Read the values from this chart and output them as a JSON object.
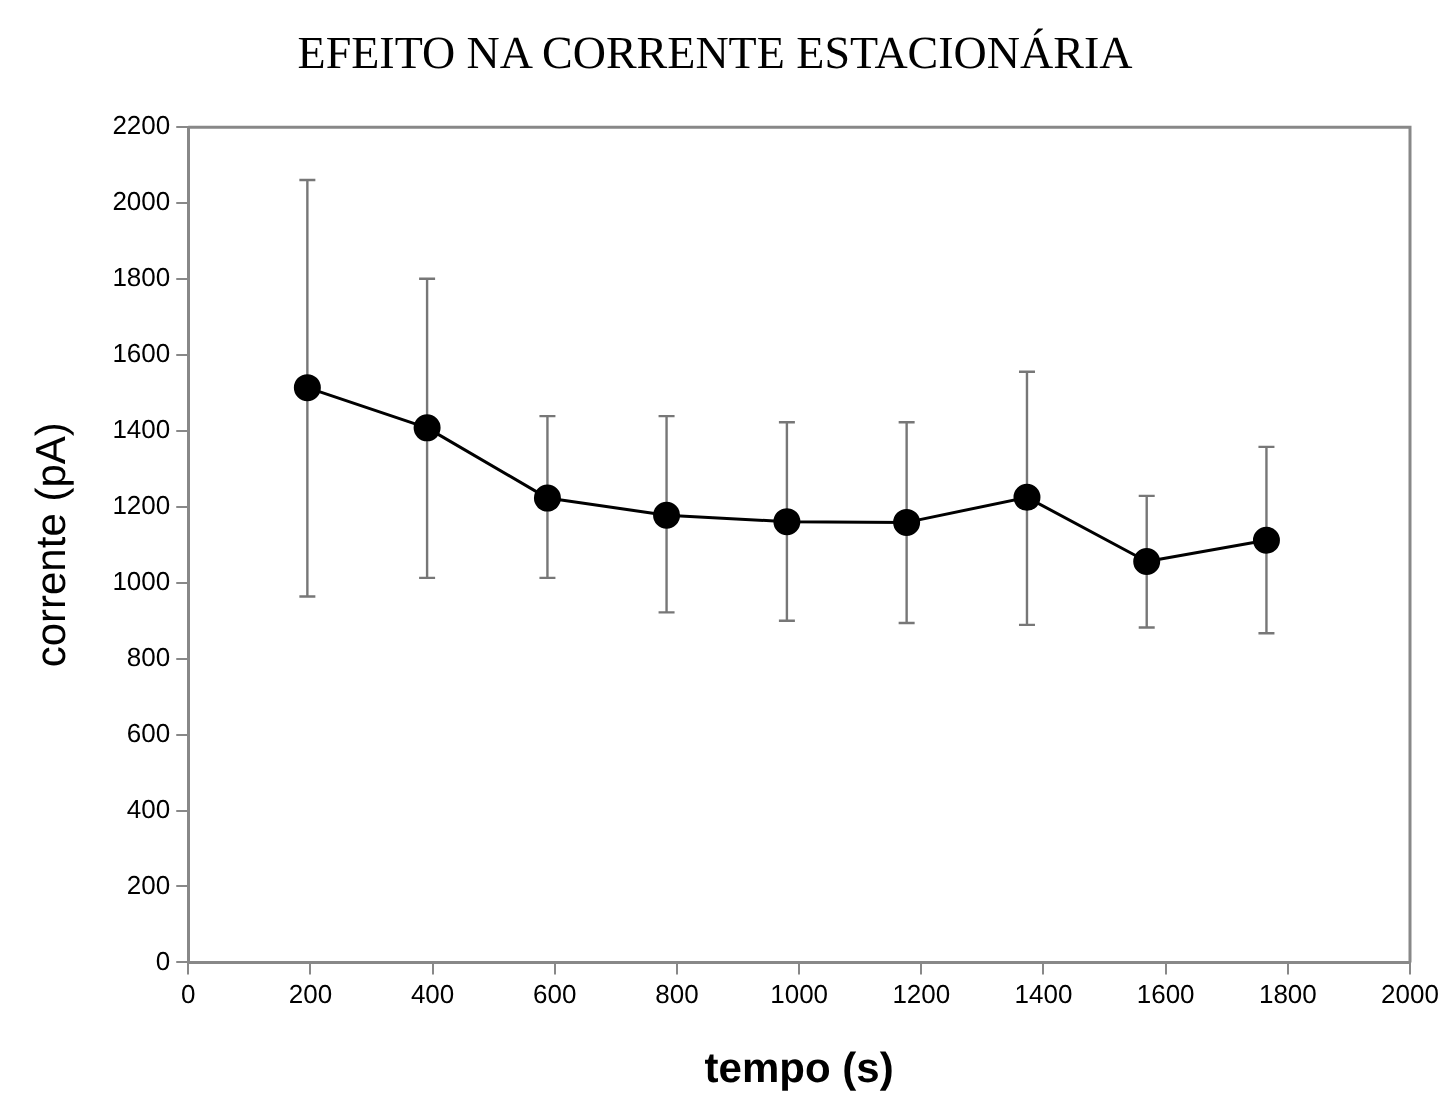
{
  "chart_data": {
    "type": "line",
    "title": "EFEITO NA CORRENTE ESTACIONÁRIA",
    "xlabel": "tempo (s)",
    "ylabel": "corrente (pA)",
    "x": [
      195,
      391,
      588,
      783,
      980,
      1176,
      1373,
      1569,
      1765
    ],
    "series": [
      {
        "color": "#000000",
        "values": [
          1514,
          1408,
          1223,
          1178,
          1161,
          1159,
          1225,
          1056,
          1112
        ],
        "errors": [
          [
            964,
            2061
          ],
          [
            1013,
            1801
          ],
          [
            1013,
            1439
          ],
          [
            922,
            1439
          ],
          [
            900,
            1423
          ],
          [
            894,
            1423
          ],
          [
            889,
            1556
          ],
          [
            882,
            1229
          ],
          [
            867,
            1358
          ]
        ]
      }
    ],
    "xlim": [
      0,
      2000
    ],
    "xticks": [
      0,
      200,
      400,
      600,
      800,
      1000,
      1200,
      1400,
      1600,
      1800,
      2000
    ],
    "ylim": [
      0,
      2200
    ],
    "yticks": [
      0,
      200,
      400,
      600,
      800,
      1000,
      1200,
      1400,
      1600,
      1800,
      2000,
      2200
    ],
    "grid": false,
    "legend": false,
    "marker": "circle",
    "line_style": "solid"
  }
}
